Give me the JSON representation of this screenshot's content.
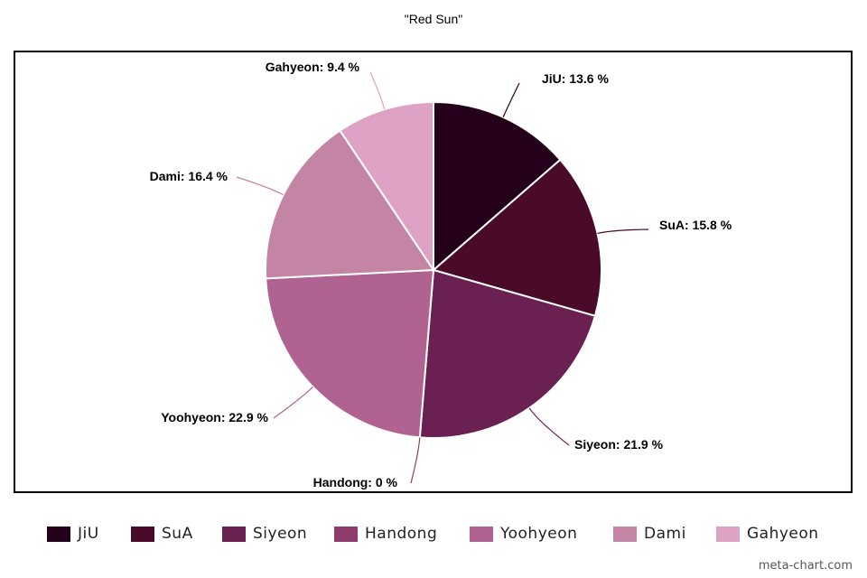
{
  "chart_data": {
    "type": "pie",
    "title": "\"Red Sun\"",
    "series": [
      {
        "name": "JiU",
        "value": 13.6,
        "label": "JiU: 13.6 %",
        "color": "#24001a"
      },
      {
        "name": "SuA",
        "value": 15.8,
        "label": "SuA: 15.8 %",
        "color": "#4a0b2a"
      },
      {
        "name": "Siyeon",
        "value": 21.9,
        "label": "Siyeon: 21.9 %",
        "color": "#6a2050"
      },
      {
        "name": "Handong",
        "value": 0,
        "label": "Handong: 0 %",
        "color": "#8f3c6c"
      },
      {
        "name": "Yoohyeon",
        "value": 22.9,
        "label": "Yoohyeon: 22.9 %",
        "color": "#b06390"
      },
      {
        "name": "Dami",
        "value": 16.4,
        "label": "Dami: 16.4 %",
        "color": "#c484a6"
      },
      {
        "name": "Gahyeon",
        "value": 9.4,
        "label": "Gahyeon: 9.4 %",
        "color": "#dda2c4"
      }
    ],
    "legend_position": "bottom"
  },
  "watermark": "meta-chart.com"
}
